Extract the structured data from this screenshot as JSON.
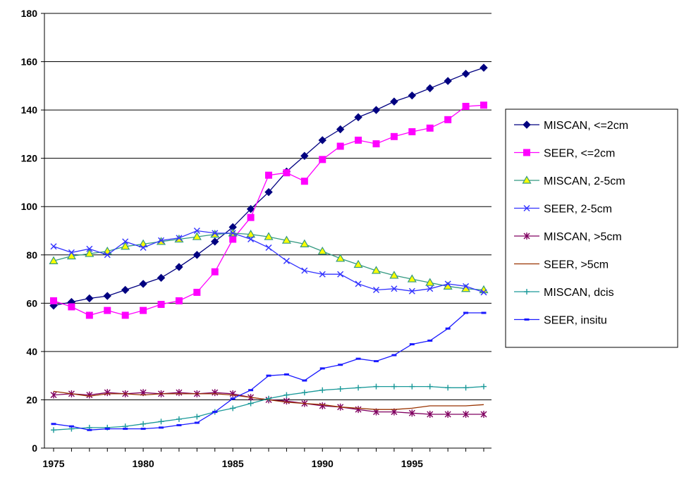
{
  "chart_data": {
    "type": "line",
    "title": "",
    "xlabel": "",
    "ylabel": "",
    "xlim": [
      1975,
      1999
    ],
    "ylim": [
      0,
      180
    ],
    "yticks": [
      0,
      20,
      40,
      60,
      80,
      100,
      120,
      140,
      160,
      180
    ],
    "xticks": [
      1975,
      1980,
      1985,
      1990,
      1995
    ],
    "grid": "horizontal",
    "legend": "right",
    "x": [
      1975,
      1976,
      1977,
      1978,
      1979,
      1980,
      1981,
      1982,
      1983,
      1984,
      1985,
      1986,
      1987,
      1988,
      1989,
      1990,
      1991,
      1992,
      1993,
      1994,
      1995,
      1996,
      1997,
      1998,
      1999
    ],
    "series": [
      {
        "name": "MISCAN, <=2cm",
        "color": "#000080",
        "marker": "diamond",
        "values": [
          59,
          60.5,
          62,
          63,
          65.5,
          68,
          70.5,
          75,
          80,
          85.5,
          91.5,
          99,
          106,
          114.5,
          121,
          127.5,
          132,
          137,
          140,
          143.5,
          146,
          149,
          152,
          155,
          157.5
        ]
      },
      {
        "name": "SEER, <=2cm",
        "color": "#ff00ff",
        "marker": "square",
        "values": [
          61,
          58.5,
          55,
          57,
          55,
          57,
          59.5,
          61,
          64.5,
          73,
          86.5,
          95.5,
          113,
          114,
          110.5,
          119.5,
          125,
          127.5,
          126,
          129,
          131,
          132.5,
          136,
          141.5,
          142
        ]
      },
      {
        "name": "MISCAN, 2-5cm",
        "color": "#339980",
        "marker": "triangle",
        "values": [
          77.5,
          79.5,
          80.5,
          81.5,
          83.5,
          84.5,
          85.5,
          86.5,
          87.5,
          88.5,
          89,
          88.5,
          87.5,
          86,
          84.5,
          81.5,
          78.5,
          76,
          73.5,
          71.5,
          70,
          68.5,
          67,
          66,
          65.5
        ]
      },
      {
        "name": "SEER, 2-5cm",
        "color": "#3333ff",
        "marker": "x",
        "values": [
          83.5,
          81,
          82.5,
          80,
          85.5,
          83,
          86,
          87,
          90,
          89,
          89,
          86.5,
          83,
          77.5,
          73.5,
          72,
          72,
          68,
          65.5,
          66,
          65,
          66,
          68,
          67,
          64.5
        ]
      },
      {
        "name": "MISCAN, >5cm",
        "color": "#800060",
        "marker": "star",
        "values": [
          22,
          22.5,
          22,
          23,
          22.5,
          23,
          22.5,
          23,
          22.5,
          23,
          22.5,
          21,
          20,
          19.5,
          18.5,
          17.5,
          17,
          16,
          15,
          15,
          14.5,
          14,
          14,
          14,
          14
        ]
      },
      {
        "name": "SEER, >5cm",
        "color": "#993300",
        "marker": "none",
        "values": [
          23.5,
          22.5,
          21.5,
          22.5,
          22.5,
          22,
          22.5,
          22.5,
          22.5,
          22.5,
          22,
          21,
          20,
          19,
          18.5,
          18,
          17,
          16.5,
          16,
          16,
          16.5,
          17.5,
          17.5,
          17.5,
          18
        ]
      },
      {
        "name": "MISCAN, dcis",
        "color": "#1a9999",
        "marker": "plus",
        "values": [
          7.5,
          8,
          8.5,
          8.5,
          9,
          10,
          11,
          12,
          13,
          15,
          16.5,
          18.5,
          20.5,
          22,
          23,
          24,
          24.5,
          25,
          25.5,
          25.5,
          25.5,
          25.5,
          25,
          25,
          25.5
        ]
      },
      {
        "name": "SEER, insitu",
        "color": "#1a1aff",
        "marker": "dash",
        "values": [
          10,
          9,
          7.5,
          8,
          8,
          8,
          8.5,
          9.5,
          10.5,
          15,
          20.5,
          24,
          30,
          30.5,
          28,
          33,
          34.5,
          37,
          36,
          38.5,
          43,
          44.5,
          49.5,
          56,
          56
        ]
      }
    ]
  }
}
